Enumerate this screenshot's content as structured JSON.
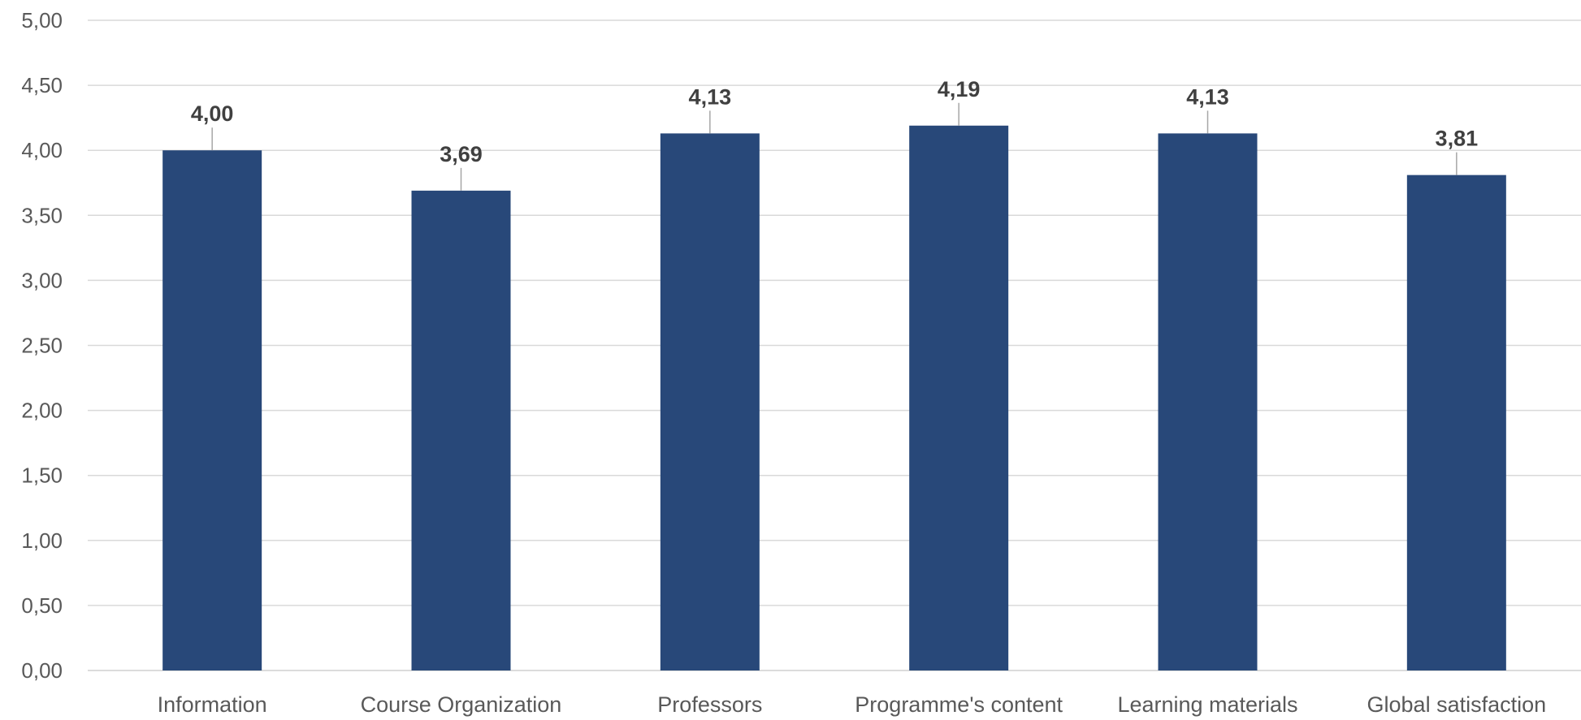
{
  "chart_data": {
    "type": "bar",
    "title": "",
    "xlabel": "",
    "ylabel": "",
    "categories": [
      "Information",
      "Course Organization",
      "Professors",
      "Programme's content",
      "Learning materials",
      "Global satisfaction"
    ],
    "values": [
      4.0,
      3.69,
      4.13,
      4.19,
      4.13,
      3.81
    ],
    "data_labels": [
      "4,00",
      "3,69",
      "4,13",
      "4,19",
      "4,13",
      "3,81"
    ],
    "ylim": [
      0,
      5
    ],
    "y_ticks": [
      0,
      0.5,
      1,
      1.5,
      2,
      2.5,
      3,
      3.5,
      4,
      4.5,
      5
    ],
    "y_tick_labels": [
      "0,00",
      "0,50",
      "1,00",
      "1,50",
      "2,00",
      "2,50",
      "3,00",
      "3,50",
      "4,00",
      "4,50",
      "5,00"
    ],
    "grid": true,
    "legend": "none",
    "colors": {
      "bar": "#284879",
      "grid": "#d9d9d9",
      "text": "#595959",
      "data_label": "#404040"
    }
  }
}
